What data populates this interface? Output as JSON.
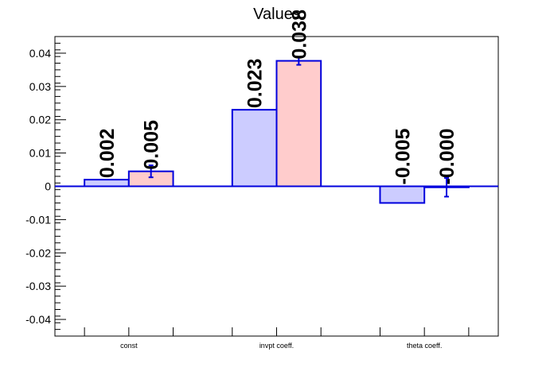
{
  "chart_data": {
    "type": "bar",
    "title": "Values",
    "categories": [
      "const",
      "invpt coeff.",
      "theta coeff."
    ],
    "series": [
      {
        "values": [
          0.002,
          0.023,
          -0.005
        ],
        "errors": [
          0,
          0,
          0
        ],
        "labels": [
          "0.002",
          "0.023",
          "-0.005"
        ],
        "fill": "#ccccff",
        "stroke": "#0000dd"
      },
      {
        "values": [
          0.0045,
          0.0377,
          -0.0003
        ],
        "errors": [
          0.0018,
          0.0012,
          0.0028
        ],
        "labels": [
          "0.005",
          "0.038",
          "-0.000"
        ],
        "fill": "#ffcccc",
        "stroke": "#0000dd"
      }
    ],
    "yticks": [
      "0.04",
      "0.03",
      "0.02",
      "0.01",
      "0",
      "-0.01",
      "-0.02",
      "-0.03",
      "-0.04"
    ],
    "ylim": [
      -0.045,
      0.045
    ],
    "grid": false
  }
}
